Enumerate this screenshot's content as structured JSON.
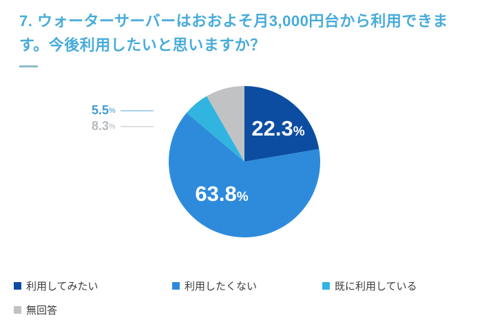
{
  "title": {
    "line1": "7. ウォーターサーバーはおおよそ月3,000円台から利用できま",
    "line2": "す。今後利用したいと思いますか？"
  },
  "chart_data": {
    "type": "pie",
    "title": "7. ウォーターサーバーはおおよそ月3,000円台から利用できます。今後利用したいと思いますか？",
    "categories": [
      "利用してみたい",
      "利用したくない",
      "既に利用している",
      "無回答"
    ],
    "values": [
      22.3,
      63.8,
      5.5,
      8.3
    ],
    "unit": "%",
    "colors": [
      "#0c4da2",
      "#2e8bdc",
      "#32b4e0",
      "#c1c2c4"
    ],
    "start_angle_deg": 0,
    "direction": "clockwise",
    "legend_position": "bottom",
    "label_placement": [
      "inside",
      "inside",
      "callout",
      "callout"
    ]
  },
  "labels": {
    "slice1": {
      "num": "22.3",
      "pct": "%"
    },
    "slice2": {
      "num": "63.8",
      "pct": "%"
    },
    "slice3": {
      "num": "5.5",
      "pct": "%"
    },
    "slice4": {
      "num": "8.3",
      "pct": "%"
    }
  },
  "legend": {
    "items": [
      {
        "label": "利用してみたい",
        "color": "#0c4da2"
      },
      {
        "label": "利用したくない",
        "color": "#2e8bdc"
      },
      {
        "label": "既に利用している",
        "color": "#32b4e0"
      },
      {
        "label": "無回答",
        "color": "#c1c2c4"
      }
    ]
  },
  "ui_colors": {
    "title_blue": "#47abda",
    "legend_text": "#3b3b3b",
    "background": "#ffffff"
  }
}
